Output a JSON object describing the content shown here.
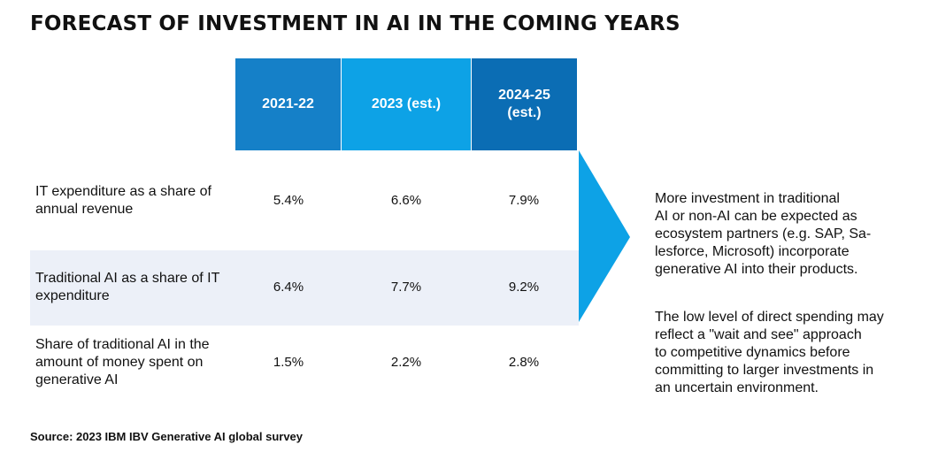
{
  "title": "FORECAST OF INVESTMENT IN AI IN THE COMING YEARS",
  "colors": {
    "header_1": "#1580c8",
    "header_2": "#0da2e6",
    "header_3": "#0b6db4",
    "band": "#ecf0f8",
    "arrow": "#0da2e6"
  },
  "chart_data": {
    "type": "table",
    "columns": [
      "2021-22",
      "2023 (est.)",
      "2024-25\n(est.)"
    ],
    "rows": [
      {
        "label": "IT expenditure as a share of annual revenue",
        "values": [
          "5.4%",
          "6.6%",
          "7.9%"
        ]
      },
      {
        "label": "Traditional AI as a share of IT expenditure",
        "values": [
          "6.4%",
          "7.7%",
          "9.2%"
        ]
      },
      {
        "label": "Share of traditional AI in the amount of money spent on generative AI",
        "values": [
          "1.5%",
          "2.2%",
          "2.8%"
        ]
      }
    ]
  },
  "notes": [
    "More investment in traditional\nAI or non-AI can be expected as\necosystem partners (e.g. SAP, Sa-\nlesforce, Microsoft) incorporate\ngenerative AI into their products.",
    "The low level of direct spending may\nreflect a \"wait and see\" approach\nto competitive dynamics before\ncommitting to larger investments in\nan uncertain environment."
  ],
  "source": "Source: 2023 IBM IBV Generative AI global survey"
}
